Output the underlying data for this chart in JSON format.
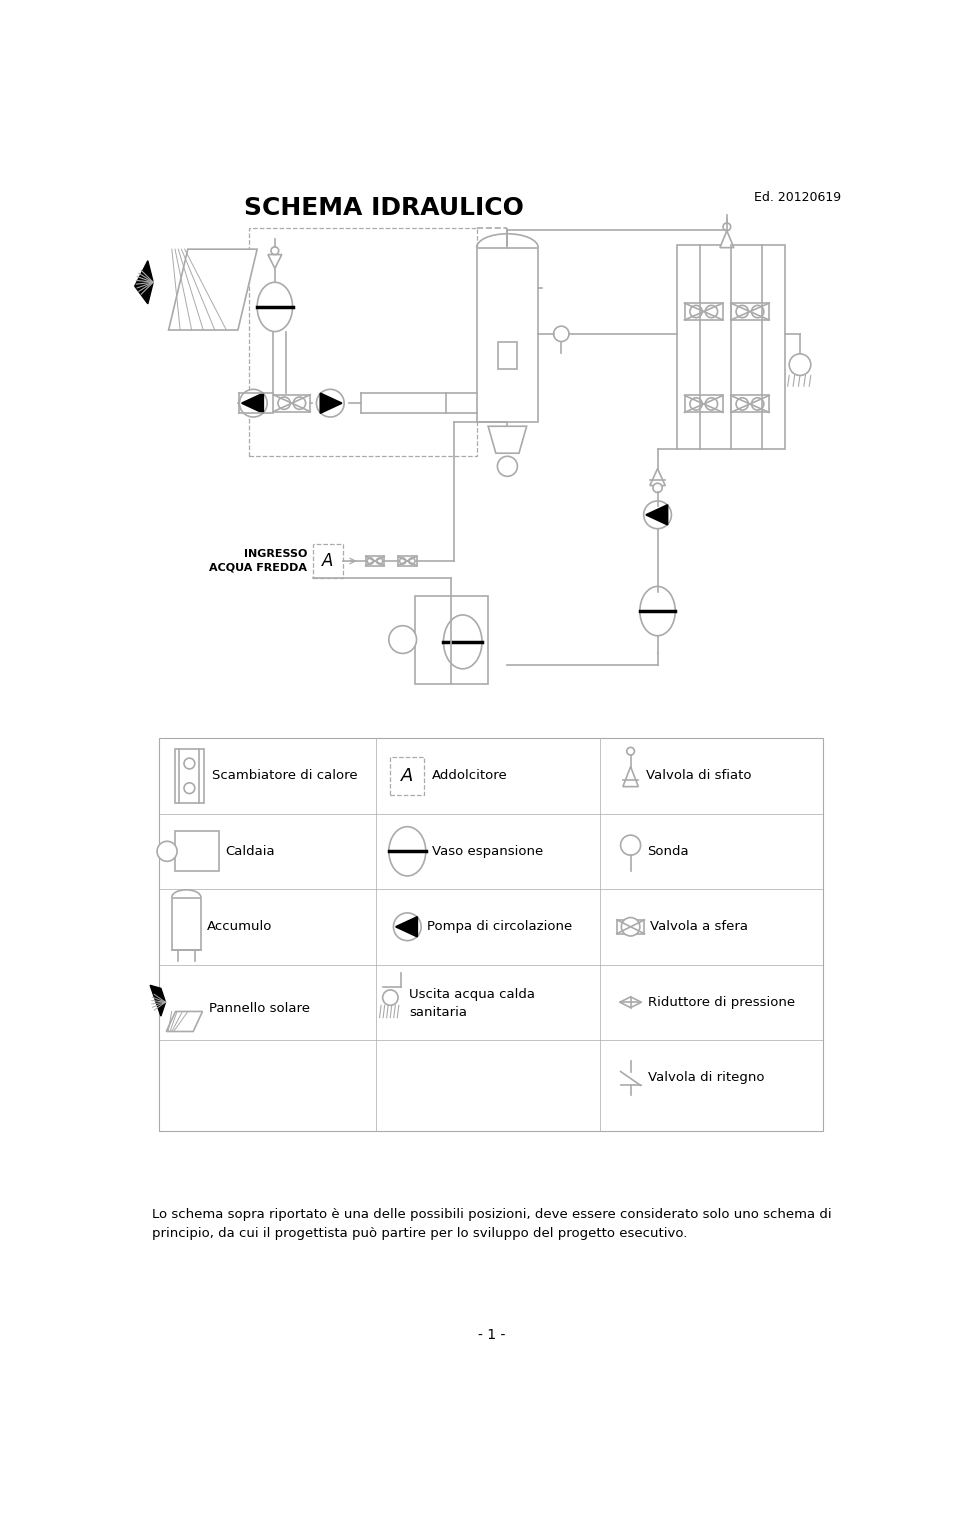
{
  "title": "SCHEMA IDRAULICO",
  "edition": "Ed. 20120619",
  "line_color": "#aaaaaa",
  "dark_color": "#000000",
  "bg_color": "#ffffff",
  "footer_text": "Lo schema sopra riportato è una delle possibili posizioni, deve essere considerato solo uno schema di\nprincipio, da cui il progettista può partire per lo sviluppo del progetto esecutivo.",
  "page_number": "- 1 -"
}
